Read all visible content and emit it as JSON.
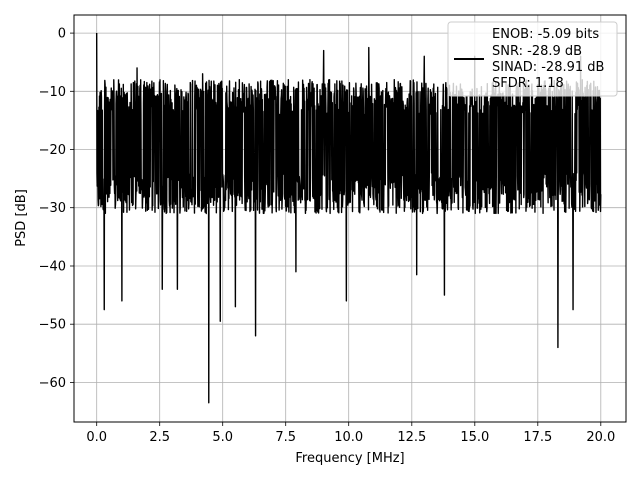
{
  "chart_data": {
    "type": "line",
    "title": "",
    "xlabel": "Frequency [MHz]",
    "ylabel": "PSD [dB]",
    "xlim": [
      -0.9,
      21.0
    ],
    "ylim": [
      -66.8,
      3.1
    ],
    "xticks": [
      0.0,
      2.5,
      5.0,
      7.5,
      10.0,
      12.5,
      15.0,
      17.5,
      20.0
    ],
    "xtick_labels": [
      "0.0",
      "2.5",
      "5.0",
      "7.5",
      "10.0",
      "12.5",
      "15.0",
      "17.5",
      "20.0"
    ],
    "yticks": [
      0,
      -10,
      -20,
      -30,
      -40,
      -50,
      -60
    ],
    "ytick_labels": [
      "0",
      "−10",
      "−20",
      "−30",
      "−40",
      "−50",
      "−60"
    ],
    "grid": true,
    "legend_position": "top-right",
    "legend_entries": [
      "ENOB: -5.09 bits",
      "SNR: -28.9 dB",
      "SINAD: -28.91 dB",
      "SFDR: 1.18"
    ],
    "series": [
      {
        "name": "",
        "color": "#000000",
        "x_range": [
          0.0,
          20.0
        ],
        "typical_band": [
          -31,
          -8
        ],
        "peaks": [
          {
            "x": 0.0,
            "y": 0.0
          },
          {
            "x": 1.6,
            "y": -6
          },
          {
            "x": 4.2,
            "y": -7
          },
          {
            "x": 9.0,
            "y": -3
          },
          {
            "x": 10.8,
            "y": -2.5
          },
          {
            "x": 13.0,
            "y": -4
          },
          {
            "x": 15.0,
            "y": -4
          },
          {
            "x": 19.2,
            "y": -4
          }
        ],
        "troughs": [
          {
            "x": 0.3,
            "y": -47.5
          },
          {
            "x": 1.0,
            "y": -46
          },
          {
            "x": 2.6,
            "y": -44
          },
          {
            "x": 3.2,
            "y": -44
          },
          {
            "x": 4.45,
            "y": -63.5
          },
          {
            "x": 4.9,
            "y": -49.5
          },
          {
            "x": 5.5,
            "y": -47
          },
          {
            "x": 6.3,
            "y": -52
          },
          {
            "x": 7.9,
            "y": -41
          },
          {
            "x": 9.9,
            "y": -46
          },
          {
            "x": 12.7,
            "y": -41.5
          },
          {
            "x": 13.8,
            "y": -45
          },
          {
            "x": 18.3,
            "y": -54
          },
          {
            "x": 18.9,
            "y": -47.5
          }
        ]
      }
    ]
  }
}
